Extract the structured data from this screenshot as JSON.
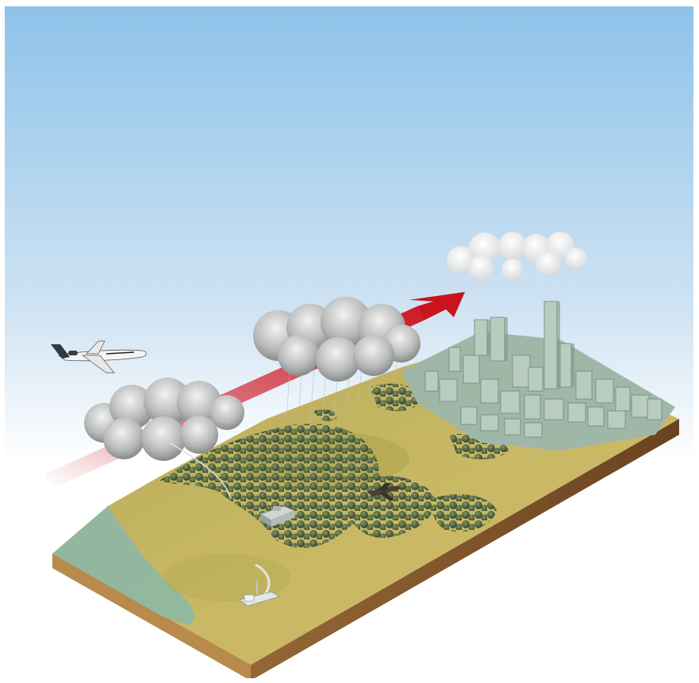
{
  "scene": {
    "colors": {
      "sky_top": "#8ec2ea",
      "sky_bottom": "#ffffff",
      "grass": "#c2b45a",
      "grass_dark": "#9c9a3e",
      "soil": "#8a5a28",
      "soil_dark": "#6b4220",
      "water": "#8fb7a1",
      "tree": "#3f5232",
      "tree_light": "#6f8a5a",
      "building": "#a9c0b0",
      "building_dark": "#7f988a",
      "arrow": "#d01f2a",
      "cloud": "#cfd0d0",
      "cloud_dark": "#8e8f90"
    },
    "icons": [
      "jet-airplane-icon",
      "military-aircraft-icon",
      "armored-vehicle-icon",
      "radar-dish-icon",
      "red-arrow-icon"
    ]
  }
}
